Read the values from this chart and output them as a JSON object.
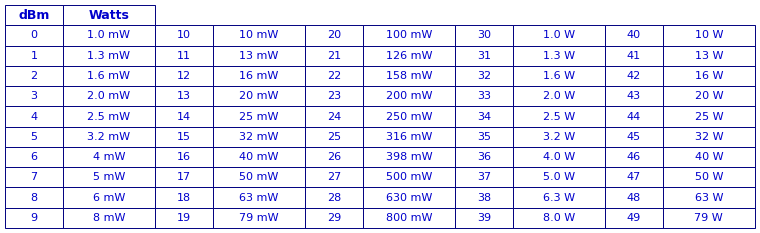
{
  "header_color": "#0000CC",
  "border_color": "#000080",
  "text_color": "#0000CC",
  "bg_color": "#FFFFFF",
  "col_groups": [
    {
      "dbm": [
        0,
        1,
        2,
        3,
        4,
        5,
        6,
        7,
        8,
        9
      ],
      "watts": [
        "1.0 mW",
        "1.3 mW",
        "1.6 mW",
        "2.0 mW",
        "2.5 mW",
        "3.2 mW",
        "4 mW",
        "5 mW",
        "6 mW",
        "8 mW"
      ]
    },
    {
      "dbm": [
        10,
        11,
        12,
        13,
        14,
        15,
        16,
        17,
        18,
        19
      ],
      "watts": [
        "10 mW",
        "13 mW",
        "16 mW",
        "20 mW",
        "25 mW",
        "32 mW",
        "40 mW",
        "50 mW",
        "63 mW",
        "79 mW"
      ]
    },
    {
      "dbm": [
        20,
        21,
        22,
        23,
        24,
        25,
        26,
        27,
        28,
        29
      ],
      "watts": [
        "100 mW",
        "126 mW",
        "158 mW",
        "200 mW",
        "250 mW",
        "316 mW",
        "398 mW",
        "500 mW",
        "630 mW",
        "800 mW"
      ]
    },
    {
      "dbm": [
        30,
        31,
        32,
        33,
        34,
        35,
        36,
        37,
        38,
        39
      ],
      "watts": [
        "1.0 W",
        "1.3 W",
        "1.6 W",
        "2.0 W",
        "2.5 W",
        "3.2 W",
        "4.0 W",
        "5.0 W",
        "6.3 W",
        "8.0 W"
      ]
    },
    {
      "dbm": [
        40,
        41,
        42,
        43,
        44,
        45,
        46,
        47,
        48,
        49
      ],
      "watts": [
        "10 W",
        "13 W",
        "16 W",
        "20 W",
        "25 W",
        "32 W",
        "40 W",
        "50 W",
        "63 W",
        "79 W"
      ]
    }
  ],
  "fig_width": 7.6,
  "fig_height": 2.33,
  "dpi": 100,
  "font_size": 8.0,
  "header_font_size": 9.0,
  "lw": 0.7
}
